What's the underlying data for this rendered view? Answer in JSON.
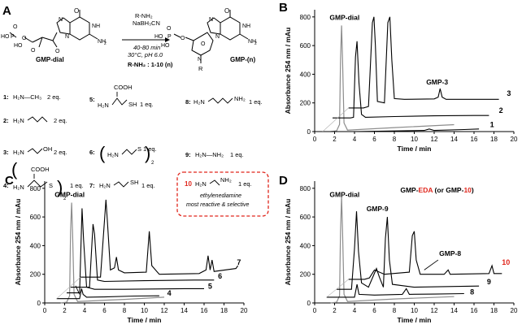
{
  "panels": {
    "A": {
      "label": "A",
      "reactant_name": "GMP-dial",
      "product_name": "GMP-(n)",
      "r_group": "R",
      "amine_label": "R-NH",
      "amine_label_sub": "2",
      "conditions": [
        "R-NH₂",
        "NaBH₃CN",
        "40-80 min",
        "30°C, pH 6.0"
      ],
      "amine_caption": "R-NH₂ : 1-10 (n)",
      "reagents": [
        {
          "n": "1:",
          "formula": "H₂N—CH₃",
          "eq": "2 eq."
        },
        {
          "n": "2:",
          "formula": "",
          "eq": "2 eq."
        },
        {
          "n": "3:",
          "formula": "",
          "eq": "2 eq."
        },
        {
          "n": "4:",
          "formula": "",
          "eq": "1 eq."
        },
        {
          "n": "5:",
          "formula": "",
          "eq": "1 eq."
        },
        {
          "n": "6:",
          "formula": "",
          "eq": "1 eq."
        },
        {
          "n": "7:",
          "formula": "",
          "eq": "1 eq."
        },
        {
          "n": "8:",
          "formula": "",
          "eq": ""
        },
        {
          "n": "9:",
          "formula": "H₂N—NH₂",
          "eq": "1 eq."
        },
        {
          "n": "10",
          "formula": "",
          "eq": "1 eq."
        }
      ],
      "highlight_note": [
        "ethylenediamine",
        "most reactive & selective"
      ]
    },
    "B": {
      "label": "B",
      "peak_label": "GMP-dial",
      "extra_labels": [
        "GMP-3"
      ]
    },
    "C": {
      "label": "C",
      "peak_label": "GMP-dial",
      "extra_labels": []
    },
    "D": {
      "label": "D",
      "peak_label": "GMP-dial",
      "extra_labels": [
        "GMP-9",
        "GMP-8"
      ],
      "title_parts": [
        "GMP-",
        "EDA",
        " (or GMP-",
        "10",
        ")"
      ]
    }
  },
  "chart_data": [
    {
      "type": "line",
      "panel": "B",
      "xlabel": "Time / min",
      "ylabel": "Absorbance 254 nm / mAu",
      "xlim": [
        0,
        20
      ],
      "ylim": [
        0,
        850
      ],
      "xticks": [
        0,
        2,
        4,
        6,
        8,
        10,
        12,
        14,
        16,
        18,
        20
      ],
      "yticks": [
        0,
        200,
        400,
        600,
        800
      ],
      "series": [
        {
          "name": "GMP-dial",
          "color": "#8c8c8c",
          "points": [
            [
              1.6,
              0
            ],
            [
              2.2,
              5
            ],
            [
              2.5,
              50
            ],
            [
              2.6,
              500
            ],
            [
              2.7,
              740
            ],
            [
              2.8,
              500
            ],
            [
              2.95,
              60
            ],
            [
              3.3,
              10
            ],
            [
              8,
              28
            ],
            [
              14,
              48
            ]
          ]
        },
        {
          "name": "1",
          "color": "#000000",
          "points": [
            [
              0.8,
              0
            ],
            [
              4,
              0
            ],
            [
              11,
              8
            ],
            [
              11.5,
              18
            ],
            [
              12,
              8
            ],
            [
              15,
              14
            ],
            [
              16.5,
              18
            ]
          ]
        },
        {
          "name": "2",
          "color": "#000000",
          "points": [
            [
              1.8,
              95
            ],
            [
              3.6,
              95
            ],
            [
              3.9,
              100
            ],
            [
              4.1,
              520
            ],
            [
              4.25,
              630
            ],
            [
              4.45,
              340
            ],
            [
              4.7,
              120
            ],
            [
              5.1,
              100
            ],
            [
              8,
              105
            ],
            [
              12,
              110
            ],
            [
              16,
              112
            ],
            [
              17.5,
              112
            ]
          ]
        },
        {
          "name": "3",
          "color": "#000000",
          "points": [
            [
              3.4,
              165
            ],
            [
              4.9,
              165
            ],
            [
              5.4,
              175
            ],
            [
              5.8,
              760
            ],
            [
              5.95,
              800
            ],
            [
              6.1,
              600
            ],
            [
              6.3,
              210
            ],
            [
              7,
              200
            ],
            [
              7.35,
              760
            ],
            [
              7.55,
              800
            ],
            [
              7.75,
              500
            ],
            [
              8,
              230
            ],
            [
              9,
              225
            ],
            [
              12,
              228
            ],
            [
              12.4,
              240
            ],
            [
              12.6,
              300
            ],
            [
              12.8,
              240
            ],
            [
              13.2,
              225
            ],
            [
              16,
              225
            ],
            [
              18.5,
              225
            ]
          ]
        }
      ],
      "annotations": [
        "GMP-dial",
        "GMP-3",
        "1",
        "2",
        "3"
      ]
    },
    {
      "type": "line",
      "panel": "C",
      "xlabel": "Time / min",
      "ylabel": "Absorbance 254 nm / mAu",
      "xlim": [
        0,
        20
      ],
      "ylim": [
        0,
        850
      ],
      "xticks": [
        0,
        2,
        4,
        6,
        8,
        10,
        12,
        14,
        16,
        18,
        20
      ],
      "yticks": [
        0,
        200,
        400,
        600,
        800
      ],
      "series": [
        {
          "name": "GMP-dial",
          "color": "#8c8c8c",
          "points": [
            [
              1.6,
              0
            ],
            [
              2.2,
              5
            ],
            [
              2.5,
              50
            ],
            [
              2.6,
              500
            ],
            [
              2.7,
              700
            ],
            [
              2.8,
              480
            ],
            [
              2.95,
              60
            ],
            [
              3.3,
              10
            ],
            [
              8,
              25
            ],
            [
              12,
              40
            ]
          ]
        },
        {
          "name": "4",
          "color": "#000000",
          "points": [
            [
              1.2,
              30
            ],
            [
              3.5,
              30
            ],
            [
              3.7,
              100
            ],
            [
              3.85,
              60
            ],
            [
              4.2,
              40
            ],
            [
              6,
              42
            ],
            [
              9,
              48
            ],
            [
              11.5,
              50
            ]
          ]
        },
        {
          "name": "5",
          "color": "#000000",
          "points": [
            [
              2.2,
              70
            ],
            [
              3.5,
              70
            ],
            [
              3.75,
              660
            ],
            [
              3.9,
              440
            ],
            [
              4.2,
              110
            ],
            [
              5,
              95
            ],
            [
              8,
              95
            ],
            [
              14,
              100
            ],
            [
              16,
              100
            ]
          ]
        },
        {
          "name": "6",
          "color": "#000000",
          "points": [
            [
              2.6,
              110
            ],
            [
              4.5,
              110
            ],
            [
              4.85,
              550
            ],
            [
              5,
              480
            ],
            [
              5.3,
              160
            ],
            [
              6,
              150
            ],
            [
              10,
              155
            ],
            [
              15,
              160
            ],
            [
              17,
              160
            ]
          ]
        },
        {
          "name": "7",
          "color": "#000000",
          "points": [
            [
              3.6,
              180
            ],
            [
              5.6,
              180
            ],
            [
              6.15,
              720
            ],
            [
              6.3,
              560
            ],
            [
              6.6,
              230
            ],
            [
              7.0,
              245
            ],
            [
              7.2,
              320
            ],
            [
              7.4,
              230
            ],
            [
              8,
              210
            ],
            [
              10.2,
              215
            ],
            [
              10.5,
              500
            ],
            [
              10.75,
              260
            ],
            [
              11.5,
              200
            ],
            [
              15.5,
              205
            ],
            [
              16.2,
              230
            ],
            [
              16.4,
              330
            ],
            [
              16.6,
              230
            ],
            [
              16.8,
              300
            ],
            [
              17,
              220
            ],
            [
              19.2,
              240
            ],
            [
              19.4,
              260
            ]
          ]
        }
      ],
      "annotations": [
        "GMP-dial",
        "4",
        "5",
        "6",
        "7"
      ]
    },
    {
      "type": "line",
      "panel": "D",
      "xlabel": "Time / min",
      "ylabel": "Absorbance 254 nm / mAu",
      "xlim": [
        0,
        20
      ],
      "ylim": [
        0,
        850
      ],
      "xticks": [
        0,
        2,
        4,
        6,
        8,
        10,
        12,
        14,
        16,
        18,
        20
      ],
      "yticks": [
        0,
        200,
        400,
        600,
        800
      ],
      "series": [
        {
          "name": "GMP-dial",
          "color": "#8c8c8c",
          "points": [
            [
              1.6,
              0
            ],
            [
              2.2,
              5
            ],
            [
              2.5,
              50
            ],
            [
              2.6,
              500
            ],
            [
              2.7,
              740
            ],
            [
              2.8,
              500
            ],
            [
              2.95,
              60
            ],
            [
              3.3,
              10
            ],
            [
              8,
              28
            ],
            [
              14,
              44
            ]
          ]
        },
        {
          "name": "8",
          "color": "#000000",
          "points": [
            [
              1.2,
              40
            ],
            [
              4,
              40
            ],
            [
              4.25,
              130
            ],
            [
              4.45,
              60
            ],
            [
              6,
              55
            ],
            [
              8.8,
              60
            ],
            [
              9.2,
              100
            ],
            [
              9.5,
              60
            ],
            [
              12,
              62
            ],
            [
              15,
              65
            ]
          ]
        },
        {
          "name": "9",
          "color": "#000000",
          "points": [
            [
              2.2,
              95
            ],
            [
              3.7,
              95
            ],
            [
              4.0,
              380
            ],
            [
              4.2,
              640
            ],
            [
              4.4,
              360
            ],
            [
              4.7,
              140
            ],
            [
              5.4,
              110
            ],
            [
              6.2,
              240
            ],
            [
              6.5,
              180
            ],
            [
              6.9,
              110
            ],
            [
              7.1,
              450
            ],
            [
              7.3,
              600
            ],
            [
              7.5,
              300
            ],
            [
              7.8,
              130
            ],
            [
              10,
              110
            ],
            [
              14,
              115
            ],
            [
              16.5,
              118
            ]
          ]
        },
        {
          "name": "10",
          "color": "#000000",
          "points": [
            [
              3.4,
              165
            ],
            [
              5,
              165
            ],
            [
              5.5,
              175
            ],
            [
              6,
              230
            ],
            [
              7,
              200
            ],
            [
              9.5,
              215
            ],
            [
              9.8,
              470
            ],
            [
              10.0,
              500
            ],
            [
              10.2,
              300
            ],
            [
              10.6,
              200
            ],
            [
              13,
              200
            ],
            [
              13.4,
              230
            ],
            [
              13.6,
              200
            ],
            [
              17.5,
              205
            ],
            [
              17.8,
              260
            ],
            [
              18,
              205
            ],
            [
              18.8,
              205
            ]
          ]
        }
      ],
      "annotations": [
        "GMP-dial",
        "GMP-9",
        "GMP-8",
        "8",
        "9",
        "10"
      ]
    }
  ]
}
